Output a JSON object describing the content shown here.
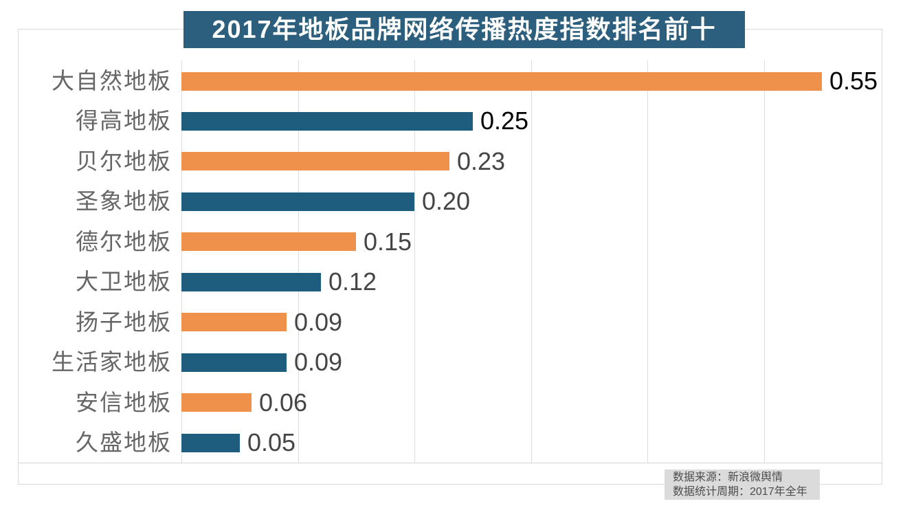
{
  "source_note": {
    "line1": "数据来源：新浪微舆情",
    "line2": "数据统计周期：2017年全年"
  },
  "colors": {
    "orange": "#F0914B",
    "teal": "#1F5D7E",
    "title_bg": "#2B5F7D",
    "title_text": "#FFFFFF",
    "grid": "#DCDCDC",
    "frame_border": "#D9D9D9",
    "axis_line": "#D4D4D4",
    "category_label": "#666666",
    "value_label_black": "#000000",
    "value_label_gray": "#454545",
    "source_bg": "#DBDBDB",
    "source_text": "#4D4D4D",
    "background": "#FFFFFF"
  },
  "chart_data": {
    "type": "bar",
    "orientation": "horizontal",
    "title": "2017年地板品牌网络传播热度指数排名前十",
    "categories": [
      "大自然地板",
      "得高地板",
      "贝尔地板",
      "圣象地板",
      "德尔地板",
      "大卫地板",
      "扬子地板",
      "生活家地板",
      "安信地板",
      "久盛地板"
    ],
    "values": [
      0.55,
      0.25,
      0.23,
      0.2,
      0.15,
      0.12,
      0.09,
      0.09,
      0.06,
      0.05
    ],
    "value_labels": [
      "0.55",
      "0.25",
      "0.23",
      "0.20",
      "0.15",
      "0.12",
      "0.09",
      "0.09",
      "0.06",
      "0.05"
    ],
    "bar_colors": [
      "#F0914B",
      "#1F5D7E",
      "#F0914B",
      "#1F5D7E",
      "#F0914B",
      "#1F5D7E",
      "#F0914B",
      "#1F5D7E",
      "#F0914B",
      "#1F5D7E"
    ],
    "value_label_colors": [
      "#000000",
      "#000000",
      "#454545",
      "#454545",
      "#454545",
      "#454545",
      "#454545",
      "#454545",
      "#454545",
      "#454545"
    ],
    "xlabel": "",
    "ylabel": "",
    "xlim": [
      0,
      0.6
    ],
    "x_tick_interval": 0.1,
    "x_tick_labels_visible": false,
    "grid": "vertical",
    "legend": "none",
    "source": "数据来源：新浪微舆情；数据统计周期：2017年全年"
  }
}
